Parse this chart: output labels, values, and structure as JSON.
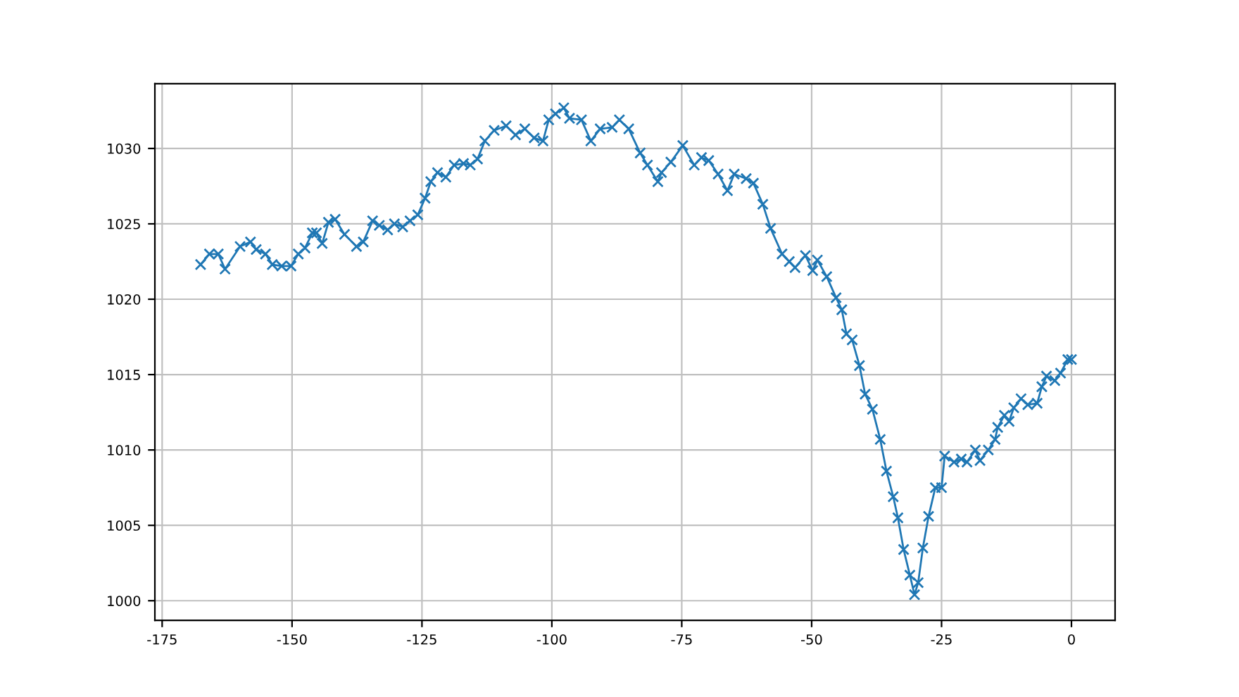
{
  "chart_data": {
    "type": "line",
    "grid": true,
    "marker": "cross",
    "line_style": "solid",
    "xlim": [
      -176.4,
      8.4
    ],
    "ylim": [
      998.7,
      1034.3
    ],
    "xticks": [
      -175,
      -150,
      -125,
      -100,
      -75,
      -50,
      -25,
      0
    ],
    "yticks": [
      1000,
      1005,
      1010,
      1015,
      1020,
      1025,
      1030
    ],
    "series": [
      {
        "color": "#1f77b4",
        "x": [
          -167.6,
          -165.9,
          -164.2,
          -162.9,
          -160,
          -158,
          -156.9,
          -155.1,
          -153.8,
          -152,
          -150.2,
          -148.8,
          -147.5,
          -146.1,
          -145.3,
          -144.2,
          -143,
          -141.7,
          -139.9,
          -137.6,
          -136.3,
          -134.5,
          -133.2,
          -131.6,
          -130.3,
          -128.7,
          -127.3,
          -125.8,
          -124.4,
          -123.3,
          -122,
          -120.4,
          -118.8,
          -117,
          -115.7,
          -114.3,
          -112.9,
          -111.1,
          -108.8,
          -107,
          -105.2,
          -103.4,
          -101.7,
          -100.6,
          -99.3,
          -97.7,
          -96.6,
          -94.3,
          -92.5,
          -90.7,
          -88.4,
          -87,
          -85.2,
          -83,
          -81.6,
          -79.6,
          -78.9,
          -77.1,
          -74.8,
          -72.6,
          -71.2,
          -69.8,
          -68,
          -66.2,
          -64.9,
          -62.6,
          -61.2,
          -59.4,
          -57.9,
          -55.7,
          -54.3,
          -53.2,
          -51.2,
          -49.8,
          -48.9,
          -47.1,
          -45.3,
          -44.2,
          -43.3,
          -42.2,
          -40.8,
          -39.7,
          -38.3,
          -36.8,
          -35.6,
          -34.3,
          -33.4,
          -32.3,
          -31.1,
          -30.2,
          -29.5,
          -28.6,
          -27.5,
          -26.2,
          -25.0,
          -24.4,
          -22.6,
          -21.2,
          -20.1,
          -18.5,
          -17.6,
          -16,
          -14.7,
          -14.2,
          -12.9,
          -12,
          -11.1,
          -9.7,
          -8.4,
          -6.6,
          -5.7,
          -4.8,
          -3.2,
          -2.1,
          -0.7,
          0
        ],
        "values": [
          1022.3,
          1023.0,
          1023.0,
          1022.0,
          1023.5,
          1023.8,
          1023.3,
          1023.0,
          1022.3,
          1022.2,
          1022.2,
          1023.0,
          1023.4,
          1024.4,
          1024.4,
          1023.7,
          1025.1,
          1025.3,
          1024.3,
          1023.5,
          1023.8,
          1025.2,
          1024.9,
          1024.6,
          1025.0,
          1024.8,
          1025.2,
          1025.6,
          1026.7,
          1027.8,
          1028.4,
          1028.1,
          1028.9,
          1029.0,
          1028.9,
          1029.3,
          1030.5,
          1031.2,
          1031.5,
          1030.9,
          1031.3,
          1030.7,
          1030.5,
          1031.9,
          1032.3,
          1032.7,
          1032.0,
          1031.9,
          1030.5,
          1031.3,
          1031.4,
          1031.9,
          1031.3,
          1029.7,
          1028.9,
          1027.8,
          1028.4,
          1029.1,
          1030.2,
          1028.9,
          1029.4,
          1029.2,
          1028.3,
          1027.2,
          1028.3,
          1028.0,
          1027.7,
          1026.3,
          1024.7,
          1023.0,
          1022.5,
          1022.1,
          1022.9,
          1021.9,
          1022.6,
          1021.5,
          1020.1,
          1019.3,
          1017.7,
          1017.3,
          1015.6,
          1013.7,
          1012.7,
          1010.7,
          1008.6,
          1006.9,
          1005.5,
          1003.4,
          1001.7,
          1000.4,
          1001.2,
          1003.5,
          1005.6,
          1007.5,
          1007.5,
          1009.6,
          1009.2,
          1009.4,
          1009.2,
          1010.0,
          1009.3,
          1010.0,
          1010.7,
          1011.5,
          1012.3,
          1011.9,
          1012.8,
          1013.4,
          1013.0,
          1013.1,
          1014.2,
          1014.9,
          1014.6,
          1015.1,
          1016.0,
          1016.0
        ]
      }
    ]
  }
}
